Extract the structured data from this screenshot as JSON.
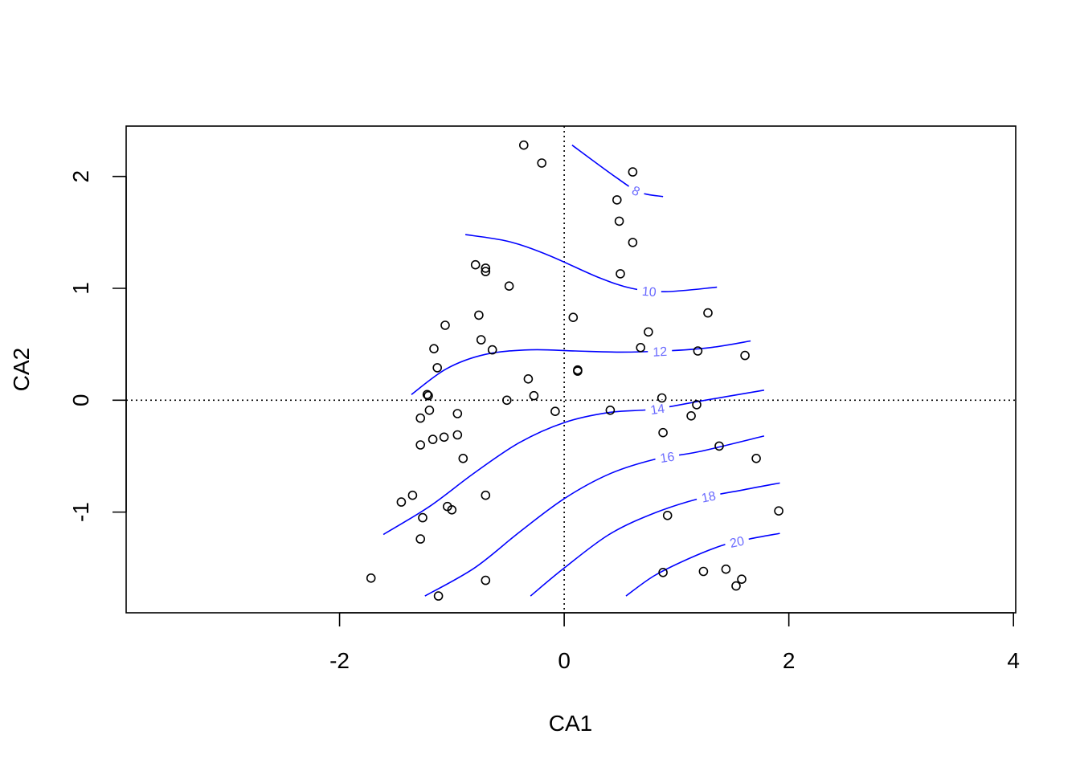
{
  "chart_data": {
    "type": "scatter",
    "title": "",
    "xlabel": "CA1",
    "ylabel": "CA2",
    "xlim": [
      -3.9,
      4.02
    ],
    "ylim": [
      -1.9,
      2.45
    ],
    "xticks": [
      -2,
      0,
      2,
      4
    ],
    "xtick_labels": [
      "-2",
      "0",
      "2",
      "4"
    ],
    "yticks": [
      -1,
      0,
      1,
      2
    ],
    "ytick_labels": [
      "-1",
      "0",
      "1",
      "2"
    ],
    "reference_lines": {
      "x": 0,
      "y": 0,
      "style": "dotted"
    },
    "colors": {
      "points": "#000000",
      "contours": "#0000ff",
      "contour_labels": "#6b6bff"
    },
    "points": [
      [
        -0.36,
        2.28
      ],
      [
        -0.2,
        2.12
      ],
      [
        0.61,
        2.04
      ],
      [
        0.47,
        1.79
      ],
      [
        0.49,
        1.6
      ],
      [
        0.61,
        1.41
      ],
      [
        0.5,
        1.13
      ],
      [
        -0.79,
        1.21
      ],
      [
        -0.7,
        1.18
      ],
      [
        -0.7,
        1.15
      ],
      [
        -0.49,
        1.02
      ],
      [
        -0.76,
        0.76
      ],
      [
        0.08,
        0.74
      ],
      [
        -1.06,
        0.67
      ],
      [
        0.75,
        0.61
      ],
      [
        1.28,
        0.78
      ],
      [
        -1.16,
        0.46
      ],
      [
        -0.74,
        0.54
      ],
      [
        -0.64,
        0.45
      ],
      [
        0.68,
        0.47
      ],
      [
        1.19,
        0.44
      ],
      [
        1.61,
        0.4
      ],
      [
        -1.13,
        0.29
      ],
      [
        0.12,
        0.27
      ],
      [
        0.12,
        0.26
      ],
      [
        -0.32,
        0.19
      ],
      [
        -1.22,
        0.05
      ],
      [
        -1.21,
        0.04
      ],
      [
        -0.27,
        0.04
      ],
      [
        -0.51,
        0.0
      ],
      [
        0.87,
        0.02
      ],
      [
        1.18,
        -0.04
      ],
      [
        -1.2,
        -0.09
      ],
      [
        -0.95,
        -0.12
      ],
      [
        -1.28,
        -0.16
      ],
      [
        -0.08,
        -0.1
      ],
      [
        0.41,
        -0.09
      ],
      [
        1.13,
        -0.14
      ],
      [
        -1.07,
        -0.33
      ],
      [
        -1.17,
        -0.35
      ],
      [
        -0.95,
        -0.31
      ],
      [
        0.88,
        -0.29
      ],
      [
        -1.28,
        -0.4
      ],
      [
        -0.9,
        -0.52
      ],
      [
        1.38,
        -0.41
      ],
      [
        1.71,
        -0.52
      ],
      [
        -1.35,
        -0.85
      ],
      [
        -0.7,
        -0.85
      ],
      [
        -1.45,
        -0.91
      ],
      [
        -1.04,
        -0.95
      ],
      [
        -1.0,
        -0.98
      ],
      [
        -1.26,
        -1.05
      ],
      [
        0.92,
        -1.03
      ],
      [
        1.91,
        -0.99
      ],
      [
        -1.28,
        -1.24
      ],
      [
        -1.72,
        -1.59
      ],
      [
        -0.7,
        -1.61
      ],
      [
        -1.12,
        -1.75
      ],
      [
        0.88,
        -1.54
      ],
      [
        1.24,
        -1.53
      ],
      [
        1.44,
        -1.51
      ],
      [
        1.58,
        -1.6
      ],
      [
        1.53,
        -1.66
      ]
    ],
    "contours": [
      {
        "level": "8",
        "points": [
          [
            0.07,
            2.28
          ],
          [
            0.45,
            2.0
          ],
          [
            0.67,
            1.86
          ],
          [
            0.88,
            1.82
          ]
        ]
      },
      {
        "level": "10",
        "points": [
          [
            -0.88,
            1.48
          ],
          [
            -0.5,
            1.42
          ],
          [
            -0.15,
            1.3
          ],
          [
            0.3,
            1.1
          ],
          [
            0.6,
            1.0
          ],
          [
            0.9,
            0.97
          ],
          [
            1.36,
            1.01
          ]
        ]
      },
      {
        "level": "12",
        "points": [
          [
            -1.36,
            0.05
          ],
          [
            -1.05,
            0.28
          ],
          [
            -0.7,
            0.41
          ],
          [
            -0.3,
            0.45
          ],
          [
            0.1,
            0.44
          ],
          [
            0.5,
            0.43
          ],
          [
            0.9,
            0.44
          ],
          [
            1.3,
            0.47
          ],
          [
            1.66,
            0.53
          ]
        ]
      },
      {
        "level": "14",
        "points": [
          [
            -1.61,
            -1.2
          ],
          [
            -1.2,
            -0.95
          ],
          [
            -0.8,
            -0.65
          ],
          [
            -0.4,
            -0.38
          ],
          [
            0.0,
            -0.2
          ],
          [
            0.4,
            -0.11
          ],
          [
            0.8,
            -0.08
          ],
          [
            1.2,
            -0.01
          ],
          [
            1.78,
            0.09
          ]
        ]
      },
      {
        "level": "16",
        "points": [
          [
            -1.24,
            -1.75
          ],
          [
            -0.8,
            -1.5
          ],
          [
            -0.4,
            -1.18
          ],
          [
            0.0,
            -0.88
          ],
          [
            0.4,
            -0.66
          ],
          [
            0.8,
            -0.53
          ],
          [
            1.2,
            -0.46
          ],
          [
            1.78,
            -0.32
          ]
        ]
      },
      {
        "level": "18",
        "points": [
          [
            -0.3,
            -1.75
          ],
          [
            0.0,
            -1.5
          ],
          [
            0.4,
            -1.2
          ],
          [
            0.8,
            -1.01
          ],
          [
            1.2,
            -0.88
          ],
          [
            1.6,
            -0.8
          ],
          [
            1.92,
            -0.74
          ]
        ]
      },
      {
        "level": "20",
        "points": [
          [
            0.55,
            -1.75
          ],
          [
            0.8,
            -1.57
          ],
          [
            1.1,
            -1.42
          ],
          [
            1.4,
            -1.3
          ],
          [
            1.65,
            -1.24
          ],
          [
            1.92,
            -1.19
          ]
        ]
      }
    ]
  }
}
